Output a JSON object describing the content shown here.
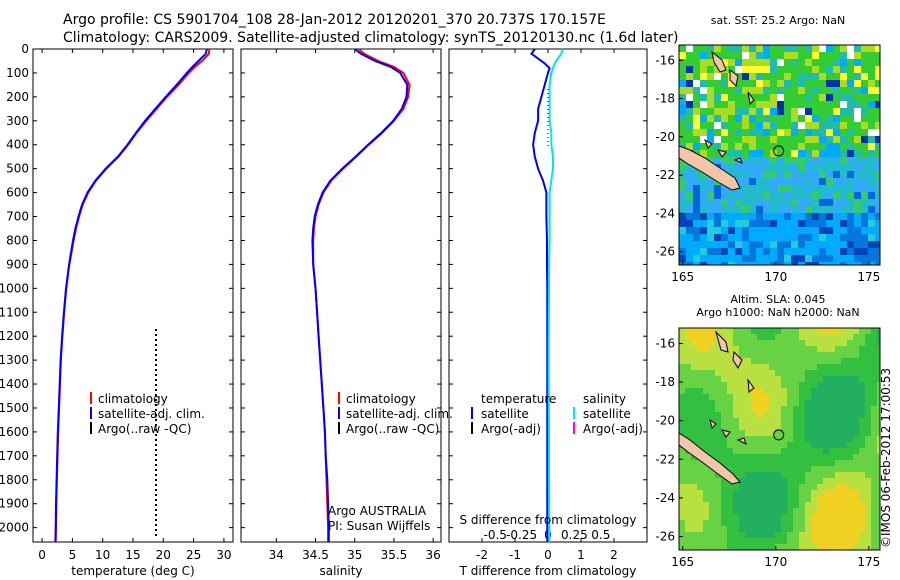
{
  "header": {
    "line1": "Argo profile: CS 5901704_108 28-Jan-2012 20120201_370 20.737S 170.157E",
    "line2": "Climatology: CARS2009. Satellite-adjusted climatology: synTS_20120130.nc (1.6d later)"
  },
  "side_stamp": "©IMOS 06-Feb-2012 17:00:53",
  "colors": {
    "climatology": "#ff0000",
    "satellite_adj": "#0000ff",
    "argo": "#000000",
    "satellite_salinity": "#00e5ee",
    "argo_salinity_adj": "#ff00ff"
  },
  "depth_axis": {
    "ticks": [
      "0",
      "100",
      "200",
      "300",
      "400",
      "500",
      "600",
      "700",
      "800",
      "900",
      "1000",
      "1100",
      "1200",
      "1300",
      "1400",
      "1500",
      "1600",
      "1700",
      "1800",
      "1900",
      "2000"
    ],
    "range": [
      0,
      2060
    ]
  },
  "chart_data": [
    {
      "type": "line",
      "id": "temperature",
      "xlabel": "temperature (deg C)",
      "xlim": [
        -1.5,
        31.5
      ],
      "ylim": [
        2060,
        0
      ],
      "xticks": [
        "0",
        "5",
        "10",
        "15",
        "20",
        "25",
        "30"
      ],
      "legend": [
        "climatology",
        "satellite-adj. clim.",
        "Argo(..raw -QC)"
      ],
      "series": [
        {
          "name": "climatology",
          "y": [
            0,
            20,
            50,
            75,
            100,
            150,
            200,
            250,
            300,
            350,
            400,
            450,
            500,
            550,
            600,
            650,
            700,
            750,
            800,
            900,
            1000,
            1100,
            1200,
            1300,
            1400,
            1500,
            1600,
            1700,
            1800,
            1900,
            2000,
            2060
          ],
          "x": [
            27.6,
            27.5,
            26.4,
            25.2,
            24.2,
            22.5,
            20.6,
            18.9,
            17.2,
            15.6,
            14.2,
            12.6,
            10.6,
            8.9,
            7.6,
            6.7,
            6.1,
            5.6,
            5.2,
            4.5,
            4.0,
            3.65,
            3.35,
            3.1,
            2.95,
            2.8,
            2.65,
            2.55,
            2.45,
            2.35,
            2.3,
            2.25
          ]
        },
        {
          "name": "satellite-adj. clim.",
          "y": [
            0,
            20,
            50,
            75,
            100,
            150,
            200,
            250,
            300,
            350,
            400,
            450,
            500,
            550,
            600,
            650,
            700,
            750,
            800,
            900,
            1000,
            1100,
            1200,
            1300,
            1400,
            1500,
            1600,
            1700,
            1800,
            1900,
            2000,
            2060
          ],
          "x": [
            27.2,
            27.0,
            25.8,
            24.8,
            23.9,
            22.2,
            20.4,
            18.7,
            17.0,
            15.5,
            14.1,
            12.5,
            10.5,
            8.8,
            7.5,
            6.6,
            6.0,
            5.5,
            5.1,
            4.45,
            3.95,
            3.6,
            3.3,
            3.05,
            2.9,
            2.75,
            2.6,
            2.5,
            2.4,
            2.3,
            2.25,
            2.2
          ]
        },
        {
          "name": "Argo(..raw -QC)",
          "y": [
            1170,
            1200,
            1250,
            1300,
            1350,
            1400,
            1450,
            1500,
            1550,
            1600,
            1650,
            1700,
            1750,
            1800,
            1850,
            1900,
            1950,
            2000,
            2040
          ],
          "x": [
            18.8,
            18.8,
            18.8,
            18.8,
            18.8,
            18.8,
            18.8,
            18.8,
            18.8,
            18.8,
            18.8,
            18.8,
            18.8,
            18.8,
            18.8,
            18.8,
            18.8,
            18.8,
            18.8
          ]
        }
      ]
    },
    {
      "type": "line",
      "id": "salinity",
      "xlabel": "salinity",
      "xlim": [
        33.55,
        36.1
      ],
      "ylim": [
        2060,
        0
      ],
      "xticks": [
        "34",
        "34.5",
        "35",
        "35.5",
        "36"
      ],
      "legend": [
        "climatology",
        "satellite-adj. clim.",
        "Argo(..raw -QC)"
      ],
      "annotation": [
        "Argo AUSTRALIA",
        "PI: Susan Wijffels"
      ],
      "series": [
        {
          "name": "climatology",
          "y": [
            0,
            20,
            50,
            75,
            100,
            150,
            200,
            250,
            300,
            350,
            400,
            450,
            500,
            550,
            600,
            650,
            700,
            750,
            800,
            900,
            1000,
            1100,
            1200,
            1300,
            1400,
            1500,
            1600,
            1700,
            1800,
            1900,
            2000,
            2060
          ],
          "x": [
            35.05,
            35.12,
            35.3,
            35.5,
            35.62,
            35.7,
            35.68,
            35.62,
            35.5,
            35.35,
            35.18,
            35.02,
            34.85,
            34.7,
            34.6,
            34.54,
            34.5,
            34.48,
            34.47,
            34.47,
            34.5,
            34.52,
            34.54,
            34.56,
            34.58,
            34.6,
            34.62,
            34.63,
            34.64,
            34.65,
            34.66,
            34.66
          ]
        },
        {
          "name": "satellite-adj. clim.",
          "y": [
            0,
            20,
            50,
            75,
            100,
            150,
            200,
            250,
            300,
            350,
            400,
            450,
            500,
            550,
            600,
            650,
            700,
            750,
            800,
            900,
            1000,
            1100,
            1200,
            1300,
            1400,
            1500,
            1600,
            1700,
            1800,
            1900,
            2000,
            2060
          ],
          "x": [
            35.0,
            35.08,
            35.26,
            35.46,
            35.58,
            35.67,
            35.66,
            35.6,
            35.49,
            35.34,
            35.17,
            35.01,
            34.84,
            34.69,
            34.59,
            34.53,
            34.49,
            34.47,
            34.46,
            34.47,
            34.5,
            34.52,
            34.54,
            34.56,
            34.58,
            34.6,
            34.62,
            34.63,
            34.65,
            34.66,
            34.67,
            34.67
          ]
        }
      ]
    },
    {
      "type": "line",
      "id": "difference",
      "xlabel": "T difference from climatology",
      "xlabel2": "S difference from climatology",
      "xlim": [
        -3,
        3
      ],
      "ylim": [
        2060,
        0
      ],
      "xticks": [
        "-2",
        "-1",
        "0",
        "1",
        "2"
      ],
      "xticks2": [
        "-0.5",
        "-0.25",
        "0",
        "0.25",
        "0.5"
      ],
      "legend_title_temperature": "temperature",
      "legend_title_salinity": "salinity",
      "legend_temperature": [
        "satellite",
        "Argo(-adj)"
      ],
      "legend_salinity": [
        "satellite",
        "Argo(-adj)"
      ],
      "series": [
        {
          "name": "temperature satellite",
          "y": [
            0,
            20,
            40,
            60,
            80,
            100,
            150,
            200,
            250,
            300,
            350,
            400,
            450,
            500,
            550,
            600,
            700,
            800,
            900,
            1000,
            1200,
            1400,
            1600,
            1800,
            2000,
            2060
          ],
          "x": [
            -0.4,
            -0.5,
            -0.3,
            -0.1,
            0.05,
            0.0,
            -0.1,
            -0.2,
            -0.3,
            -0.3,
            -0.4,
            -0.45,
            -0.4,
            -0.3,
            -0.15,
            -0.05,
            -0.05,
            -0.03,
            -0.03,
            -0.02,
            -0.02,
            -0.02,
            -0.02,
            -0.02,
            -0.02,
            -0.02
          ]
        },
        {
          "name": "salinity satellite",
          "y": [
            0,
            20,
            40,
            60,
            80,
            100,
            150,
            200,
            250,
            300,
            350,
            400,
            450,
            500,
            550,
            600,
            700,
            800,
            900,
            1000,
            1200,
            1400,
            1600,
            1800,
            2000,
            2060
          ],
          "x": [
            0.45,
            0.4,
            0.3,
            0.2,
            0.15,
            0.1,
            0.05,
            0.05,
            0.05,
            0.05,
            0.1,
            0.1,
            0.15,
            0.15,
            0.1,
            0.05,
            0.05,
            0.05,
            0.03,
            0.03,
            0.02,
            0.02,
            0.03,
            0.03,
            0.04,
            0.04
          ]
        }
      ]
    },
    {
      "type": "heatmap",
      "id": "sst-map",
      "title": "sat. SST: 25.2  Argo: NaN",
      "xlim": [
        164.8,
        175.6
      ],
      "ylim": [
        -26.7,
        -15.2
      ],
      "xticks": [
        "165",
        "170",
        "175"
      ],
      "yticks": [
        "-16",
        "-18",
        "-20",
        "-22",
        "-24",
        "-26"
      ],
      "argo_position": [
        170.157,
        -20.737
      ]
    },
    {
      "type": "heatmap",
      "id": "sla-map",
      "title1": "Altim. SLA: 0.045",
      "title2": "Argo h1000: NaN h2000: NaN",
      "xlim": [
        164.8,
        175.6
      ],
      "ylim": [
        -26.7,
        -15.2
      ],
      "xticks": [
        "165",
        "170",
        "175"
      ],
      "yticks": [
        "-16",
        "-18",
        "-20",
        "-22",
        "-24",
        "-26"
      ],
      "argo_position": [
        170.157,
        -20.737
      ]
    }
  ]
}
